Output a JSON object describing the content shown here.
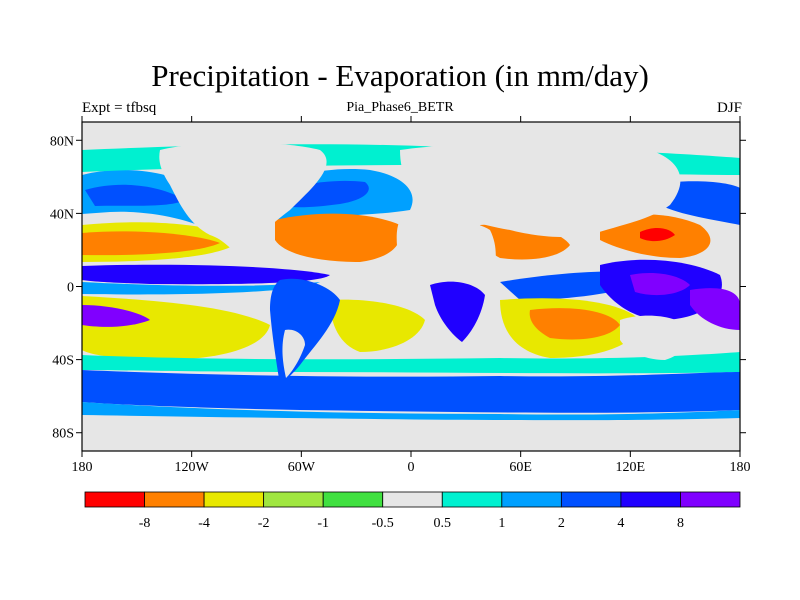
{
  "title": "Precipitation - Evaporation (in mm/day)",
  "experiment_label": "Expt = tfbsq",
  "run_name": "Pia_Phase6_BETR",
  "season": "DJF",
  "axes": {
    "y_ticks": [
      {
        "lat": 80,
        "label": "80N"
      },
      {
        "lat": 40,
        "label": "40N"
      },
      {
        "lat": 0,
        "label": "0"
      },
      {
        "lat": -40,
        "label": "40S"
      },
      {
        "lat": -80,
        "label": "80S"
      }
    ],
    "x_ticks": [
      {
        "lon": -180,
        "label": "180"
      },
      {
        "lon": -120,
        "label": "120W"
      },
      {
        "lon": -60,
        "label": "60W"
      },
      {
        "lon": 0,
        "label": "0"
      },
      {
        "lon": 60,
        "label": "60E"
      },
      {
        "lon": 120,
        "label": "120E"
      },
      {
        "lon": 180,
        "label": "180"
      }
    ],
    "lon_range": [
      -180,
      180
    ],
    "lat_range": [
      -90,
      90
    ]
  },
  "colorbar": {
    "colors": [
      "#ff0000",
      "#ff8000",
      "#e8e800",
      "#a0e640",
      "#40e040",
      "#e6e6e6",
      "#00f0d0",
      "#00a0ff",
      "#0050ff",
      "#2000ff",
      "#8000ff"
    ],
    "labels": [
      "-8",
      "-4",
      "-2",
      "-1",
      "-0.5",
      "0.5",
      "1",
      "2",
      "4",
      "8"
    ]
  },
  "palette": {
    "neutral": "#e6e6e6",
    "cyan": "#00f0d0",
    "lightblue": "#00a0ff",
    "blue": "#0050ff",
    "darkblue": "#2000ff",
    "purple": "#8000ff",
    "yellow": "#e8e800",
    "orange": "#ff8000",
    "red": "#ff0000",
    "lightgreen": "#a0e640",
    "green": "#40e040"
  }
}
